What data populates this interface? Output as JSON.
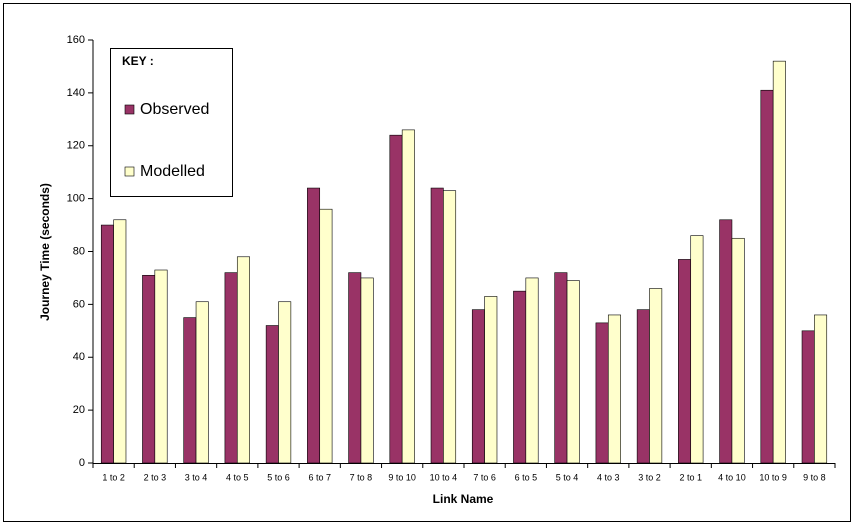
{
  "chart_data": {
    "type": "bar",
    "x_label": "Link Name",
    "y_label": "Journey Time (seconds)",
    "legend_title": "KEY :",
    "categories": [
      "1 to 2",
      "2 to 3",
      "3 to 4",
      "4 to 5",
      "5 to 6",
      "6 to 7",
      "7 to 8",
      "9 to 10",
      "10 to 4",
      "7 to 6",
      "6 to 5",
      "5 to 4",
      "4 to 3",
      "3 to 2",
      "2 to 1",
      "4 to 10",
      "10 to 9",
      "9 to 8"
    ],
    "series": [
      {
        "name": "Observed",
        "color": "#993366",
        "values": [
          90,
          71,
          55,
          72,
          52,
          104,
          72,
          124,
          104,
          58,
          65,
          72,
          53,
          58,
          77,
          92,
          141,
          50
        ]
      },
      {
        "name": "Modelled",
        "color": "#ffffcc",
        "values": [
          92,
          73,
          61,
          78,
          61,
          96,
          70,
          126,
          103,
          63,
          70,
          69,
          56,
          66,
          86,
          85,
          152,
          56
        ]
      }
    ],
    "ylim": [
      0,
      160
    ],
    "yticks": [
      0,
      20,
      40,
      60,
      80,
      100,
      120,
      140,
      160
    ],
    "grid": false,
    "legend": "upper-left"
  }
}
